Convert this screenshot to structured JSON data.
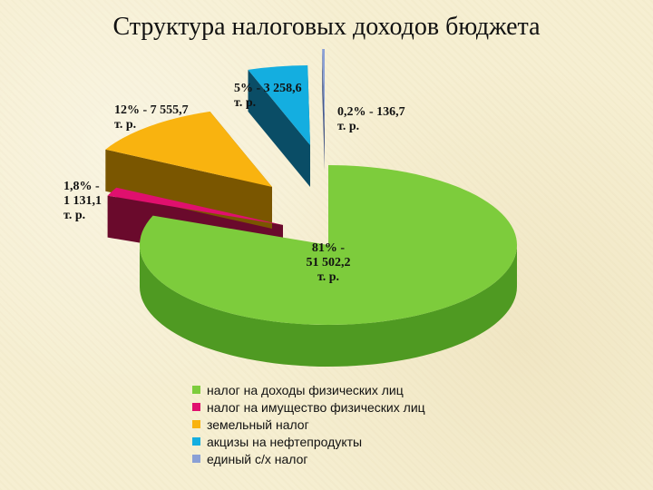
{
  "title": "Структура налоговых доходов бюджета",
  "chart_data": {
    "type": "pie",
    "title": "Структура налоговых доходов бюджета",
    "unit": "т. р.",
    "slices": [
      {
        "name": "налог на доходы физических лиц",
        "percent_label": "81%",
        "value": 51502.2,
        "color": "#7dcc3c",
        "side": "#4f9a22",
        "label_lines": [
          "81% -",
          "51 502,2",
          "т. р."
        ]
      },
      {
        "name": "налог на имущество физических лиц",
        "percent_label": "1,8%",
        "value": 1131.1,
        "color": "#e0106e",
        "side": "#6a0a2c",
        "label_lines": [
          "1,8% -",
          "1 131,1",
          "т. р."
        ]
      },
      {
        "name": "земельный налог",
        "percent_label": "12%",
        "value": 7555.7,
        "color": "#f9b30f",
        "side": "#7a5600",
        "label_lines": [
          "12% - 7 555,7",
          "т. р."
        ]
      },
      {
        "name": "акцизы на нефтепродукты",
        "percent_label": "5%",
        "value": 3258.6,
        "color": "#14aee0",
        "side": "#0a4d66",
        "label_lines": [
          "5% - 3 258,6",
          "т. р."
        ]
      },
      {
        "name": "единый с/х налог",
        "percent_label": "0,2%",
        "value": 136.7,
        "color": "#8aa0d6",
        "side": "#4a5a86",
        "label_lines": [
          "0,2% - 136,7",
          "т. р."
        ]
      }
    ],
    "legend_position": "bottom"
  }
}
